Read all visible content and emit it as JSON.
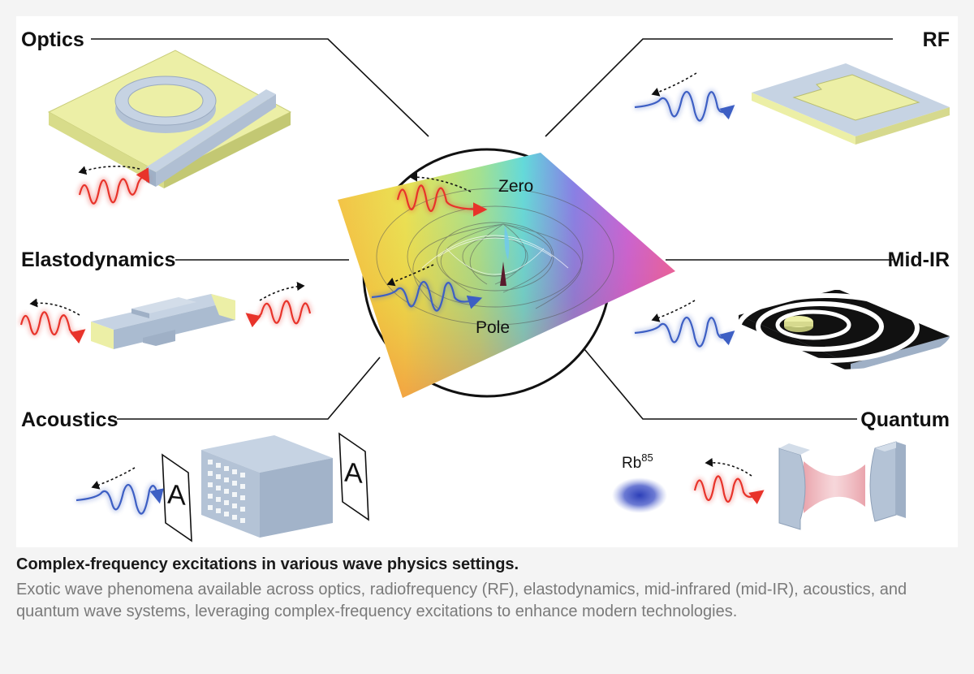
{
  "labels": {
    "optics": "Optics",
    "rf": "RF",
    "elastodynamics": "Elastodynamics",
    "mid_ir": "Mid-IR",
    "acoustics": "Acoustics",
    "quantum": "Quantum",
    "zero": "Zero",
    "pole": "Pole",
    "rb_base": "Rb",
    "rb_sup": "85",
    "acoustic_letter_left": "A",
    "acoustic_letter_right": "A"
  },
  "caption": {
    "title": "Complex-frequency excitations in various wave physics settings.",
    "body": "Exotic wave phenomena available across optics, radiofrequency (RF), elastodynamics, mid-infrared (mid-IR), acoustics, and quantum wave systems, leveraging complex-frequency excitations to enhance modern technologies."
  },
  "colors": {
    "red_wave": "#e8332a",
    "blue_wave": "#3d5fc4",
    "device_blue": "#b4c3d6",
    "device_yellow": "#ecefa6",
    "pink_cavity": "#e79aa3",
    "rb_cloud": "#2c3fb8"
  },
  "icons": {
    "optics": "ring-resonator-icon",
    "rf": "patch-antenna-icon",
    "elastodynamics": "elastic-beam-icon",
    "mid_ir": "metasurface-disk-icon",
    "acoustics": "acoustic-metamaterial-icon",
    "quantum": "optical-cavity-icon",
    "center": "complex-frequency-plane-icon"
  }
}
